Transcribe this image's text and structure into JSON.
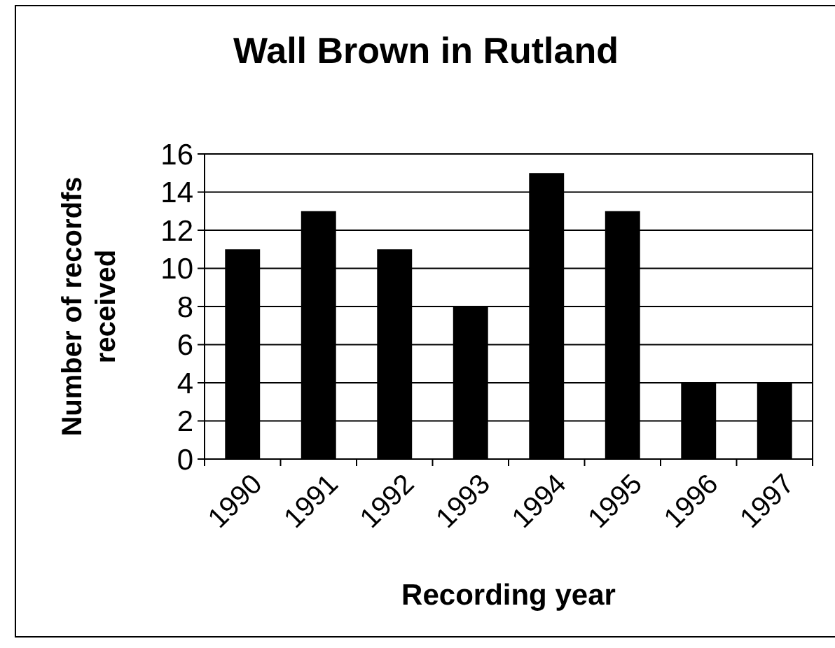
{
  "chart_data": {
    "type": "bar",
    "title": "Wall Brown in Rutland",
    "xlabel": "Recording year",
    "ylabel": "Number of recordfs received",
    "categories": [
      "1990",
      "1991",
      "1992",
      "1993",
      "1994",
      "1995",
      "1996",
      "1997"
    ],
    "values": [
      11,
      13,
      11,
      8,
      15,
      13,
      4,
      4
    ],
    "color": "#000000",
    "ylim": [
      0,
      16
    ],
    "yticks": [
      0,
      2,
      4,
      6,
      8,
      10,
      12,
      14,
      16
    ],
    "grid": "y"
  }
}
